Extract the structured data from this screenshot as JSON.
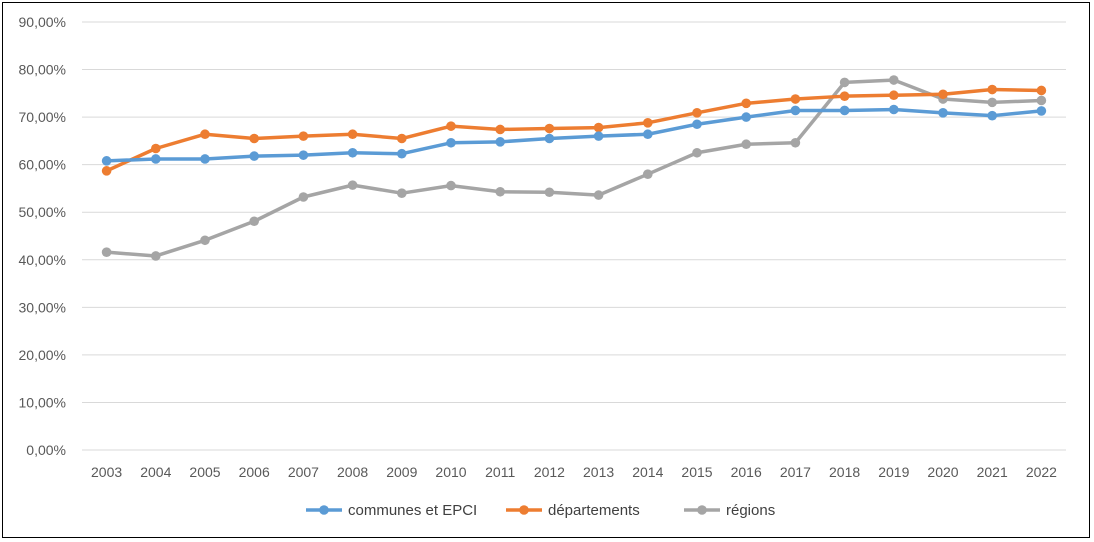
{
  "chart_data": {
    "type": "line",
    "title": "",
    "xlabel": "",
    "ylabel": "",
    "ylim": [
      0,
      90
    ],
    "y_ticks": [
      "0,00%",
      "10,00%",
      "20,00%",
      "30,00%",
      "40,00%",
      "50,00%",
      "60,00%",
      "70,00%",
      "80,00%",
      "90,00%"
    ],
    "categories": [
      "2003",
      "2004",
      "2005",
      "2006",
      "2007",
      "2008",
      "2009",
      "2010",
      "2011",
      "2012",
      "2013",
      "2014",
      "2015",
      "2016",
      "2017",
      "2018",
      "2019",
      "2020",
      "2021",
      "2022"
    ],
    "grid": "horizontal",
    "legend_position": "bottom",
    "series": [
      {
        "name": "communes et EPCI",
        "color": "#5B9BD5",
        "values": [
          60.8,
          61.2,
          61.2,
          61.8,
          62.0,
          62.5,
          62.3,
          64.6,
          64.8,
          65.5,
          66.0,
          66.4,
          68.5,
          70.0,
          71.4,
          71.4,
          71.6,
          70.9,
          70.3,
          71.3
        ]
      },
      {
        "name": "départements",
        "color": "#ED7D31",
        "values": [
          58.7,
          63.4,
          66.4,
          65.5,
          66.0,
          66.4,
          65.5,
          68.1,
          67.4,
          67.6,
          67.8,
          68.8,
          70.9,
          72.9,
          73.8,
          74.4,
          74.6,
          74.8,
          75.8,
          75.6
        ]
      },
      {
        "name": "régions",
        "color": "#A5A5A5",
        "values": [
          41.6,
          40.8,
          44.1,
          48.1,
          53.2,
          55.7,
          54.0,
          55.6,
          54.3,
          54.2,
          53.6,
          58.0,
          62.5,
          64.3,
          64.6,
          77.3,
          77.8,
          73.8,
          73.1,
          73.5
        ]
      }
    ]
  }
}
